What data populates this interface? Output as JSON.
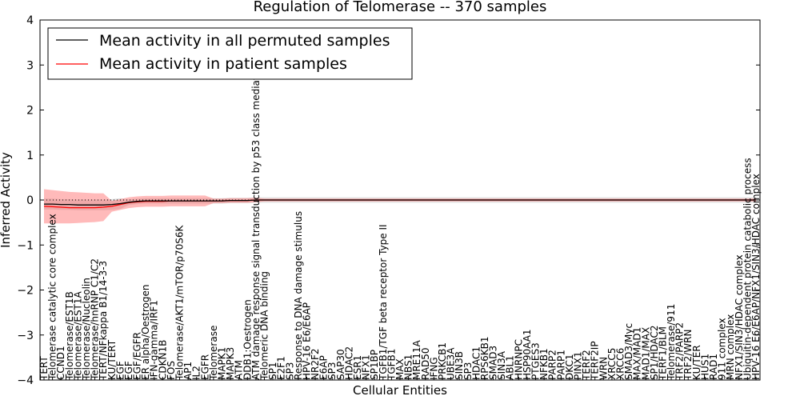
{
  "chart_data": {
    "type": "line",
    "title": "Regulation of Telomerase -- 370 samples",
    "xlabel": "Cellular Entities",
    "ylabel": "Inferred Activity",
    "ylim": [
      -4,
      4
    ],
    "yticks": [
      -4,
      -3,
      -2,
      -1,
      0,
      1,
      2,
      3,
      4
    ],
    "legend": {
      "position": "top-left",
      "entries": [
        {
          "name": "Mean activity in all permuted samples",
          "color": "#000000"
        },
        {
          "name": "Mean activity in patient samples",
          "color": "#ff0000"
        }
      ]
    },
    "x_entities": [
      "TERT",
      "Telomerase catalytic core complex",
      "CCND1",
      "Telomerase/EST1B",
      "Telomerase/EST1A",
      "Telomerase/Nucleolin",
      "Telomerase/hnRNP C1/C2",
      "TERT/NFkappa B1/14-3-3",
      "KU/TERT",
      "EGF",
      "EGF",
      "EGF/EGFR",
      "ER alpha/Oestrogen",
      "IFN-gamma/IRF1",
      "CDKN1B",
      "FOS",
      "Telomerase/AKT1/mTOR/p70S6K",
      "AP1",
      "IL2",
      "EGFR",
      "Telomerase",
      "MAPK1",
      "MAPK3",
      "ATM",
      "DDB1:Oestrogen",
      "ATM damage response signal transduction by p53 class mediator",
      "Telomeric DNA binding",
      "SP1",
      "E2F1",
      "SP3",
      "Response to DNA damage stimulus",
      "HPV-16 E6/E6AP",
      "NR2F2",
      "E6AP",
      "SP3",
      "SAP30",
      "HDAC2",
      "ESR1",
      "NFX1",
      "SP1BP",
      "TGFB1/TGF beta receptor Type II",
      "TGFB1",
      "MAX",
      "NBS1",
      "MRE11A",
      "RAD50",
      "IFNG",
      "PRKCB1",
      "UBE3A",
      "SIN3B",
      "SP3",
      "HDAC1",
      "RPS6KB1",
      "SMAD3",
      "SIN3A",
      "ABL1",
      "HNRNPC",
      "HSP90AA1",
      "PTGES3",
      "NFKB1",
      "PARP2",
      "PARP1",
      "DKC1",
      "PINX1",
      "TERF2",
      "TERF2IP",
      "WRN",
      "XRCC5",
      "XRCC6",
      "SMAD3/Myc",
      "MAX/MAD1",
      "MAD1/MAX",
      "SP1/HDAC2",
      "TERF1/BLM",
      "Telomerase/911",
      "TRF2/PARP2",
      "TRF2/WRN",
      "KU/TER",
      "HUS1",
      "RAD1",
      "911 complex",
      "MRN complex",
      "NFX1/SIN3/HDAC complex",
      "Ubiquitin-dependent protein catabolic process",
      "HPV-16 E6/E6AP/NFX1/SIN3/HDAC complex"
    ],
    "series": [
      {
        "name": "Mean activity in all permuted samples",
        "color": "#000000",
        "values": [
          -0.09,
          -0.09,
          -0.1,
          -0.1,
          -0.11,
          -0.11,
          -0.11,
          -0.11,
          -0.1,
          -0.08,
          -0.05,
          -0.03,
          -0.02,
          -0.02,
          -0.02,
          -0.02,
          -0.02,
          -0.02,
          -0.02,
          -0.02,
          -0.02,
          -0.02,
          -0.01,
          -0.01,
          -0.01,
          0,
          0,
          0,
          0,
          0,
          0,
          0,
          0,
          0,
          0,
          0,
          0,
          0,
          0,
          0,
          0,
          0,
          0,
          0,
          0,
          0,
          0,
          0,
          0,
          0,
          0,
          0,
          0,
          0,
          0,
          0,
          0,
          0,
          0,
          0,
          0,
          0,
          0,
          0,
          0,
          0,
          0,
          0,
          0,
          0,
          0,
          0,
          0,
          0,
          0,
          0,
          0,
          0,
          0,
          0,
          0,
          0,
          0,
          0,
          0
        ]
      },
      {
        "name": "Mean activity in patient samples",
        "color": "#ff0000",
        "values": [
          -0.14,
          -0.15,
          -0.16,
          -0.17,
          -0.17,
          -0.17,
          -0.17,
          -0.16,
          -0.14,
          -0.1,
          -0.06,
          -0.04,
          -0.03,
          -0.03,
          -0.03,
          -0.02,
          -0.02,
          -0.02,
          -0.02,
          -0.02,
          -0.02,
          -0.02,
          -0.01,
          -0.01,
          -0.01,
          0,
          0,
          0,
          0,
          0,
          0,
          0,
          0,
          0,
          0,
          0,
          0,
          0,
          0,
          0,
          0,
          0,
          0,
          0,
          0,
          0,
          0,
          0,
          0,
          0,
          0,
          0,
          0,
          0,
          0,
          0,
          0,
          0,
          0,
          0,
          0,
          0,
          0,
          0,
          0,
          0,
          0,
          0,
          0,
          0,
          0,
          0,
          0,
          0,
          0,
          0,
          0,
          0,
          0,
          0,
          0,
          0,
          0,
          0,
          0
        ]
      }
    ]
  }
}
